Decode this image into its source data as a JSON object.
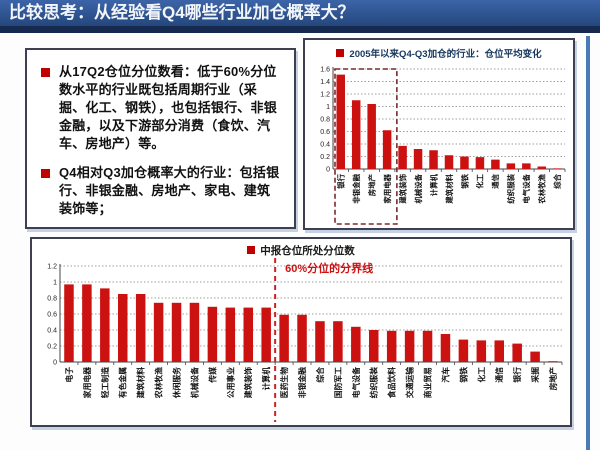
{
  "title": "比较思考：从经验看Q4哪些行业加仓概率大？",
  "colors": {
    "title_bar_blue": "#2d5291",
    "title_strip_navy": "#16294e",
    "bar_red": "#cc1111",
    "bullet_red": "#c00000",
    "divider_red": "#cc2222",
    "highlight_box_dark_red": "#7a2a2a",
    "legend1_text": "#17375e",
    "panel_border": "#3f3f52",
    "right_rule_blue": "#4a7ab5",
    "grid_gray": "#808080"
  },
  "left_panel": {
    "bullets": [
      "从17Q2仓位分位数看：低于60%分位数水平的行业既包括周期行业（采掘、化工、钢铁），也包括银行、非银金融，以及下游部分消费（食饮、汽车、房地产）等。",
      "Q4相对Q3加仓概率大的行业：包括银行、非银金融、房地产、家电、建筑装饰等；"
    ]
  },
  "chart_data": [
    {
      "type": "bar",
      "legend": "2005年以来Q4-Q3加仓的行业：仓位平均变化",
      "legend_position": "top-center",
      "categories": [
        "银行",
        "非银金融",
        "房地产",
        "家用电器",
        "建筑装饰",
        "机械设备",
        "计算机",
        "建筑材料",
        "钢铁",
        "化工",
        "通信",
        "纺织服装",
        "电气设备",
        "农林牧渔",
        "综合"
      ],
      "values": [
        1.51,
        1.1,
        1.04,
        0.62,
        0.37,
        0.32,
        0.3,
        0.22,
        0.2,
        0.19,
        0.15,
        0.09,
        0.09,
        0.04,
        0.01
      ],
      "xlabel": "",
      "ylabel": "",
      "ylim": [
        0,
        1.6
      ],
      "yticks": [
        "0",
        "0.2",
        "0.4",
        "0.6",
        "0.8",
        "1",
        "1.2",
        "1.4",
        "1.6"
      ],
      "grid": "dotted-horizontal",
      "highlight": {
        "style": "dashed-box",
        "first_n_bars": 4
      }
    },
    {
      "type": "bar",
      "legend": "中报仓位所处分位数",
      "legend_position": "top-center",
      "categories": [
        "电子",
        "家用电器",
        "轻工制造",
        "有色金属",
        "建筑材料",
        "农林牧渔",
        "休闲服务",
        "机械设备",
        "传媒",
        "公用事业",
        "建筑装饰",
        "计算机",
        "医药生物",
        "非银金融",
        "综合",
        "国防军工",
        "电气设备",
        "纺织服装",
        "食品饮料",
        "交通运输",
        "商业贸易",
        "汽车",
        "钢铁",
        "化工",
        "通信",
        "银行",
        "采掘",
        "房地产"
      ],
      "values": [
        0.97,
        0.97,
        0.92,
        0.85,
        0.85,
        0.74,
        0.74,
        0.74,
        0.69,
        0.68,
        0.68,
        0.68,
        0.59,
        0.59,
        0.51,
        0.51,
        0.44,
        0.4,
        0.39,
        0.39,
        0.39,
        0.35,
        0.28,
        0.27,
        0.27,
        0.23,
        0.13,
        0.01
      ],
      "xlabel": "",
      "ylabel": "",
      "ylim": [
        0,
        1.2
      ],
      "yticks": [
        "0",
        "0.2",
        "0.4",
        "0.6",
        "0.8",
        "1",
        "1.2"
      ],
      "grid": "dotted-horizontal",
      "divider": {
        "style": "dashed-vertical-red",
        "after_index": 12,
        "after_category": "计算机",
        "label": "60%分位的分界线"
      }
    }
  ]
}
